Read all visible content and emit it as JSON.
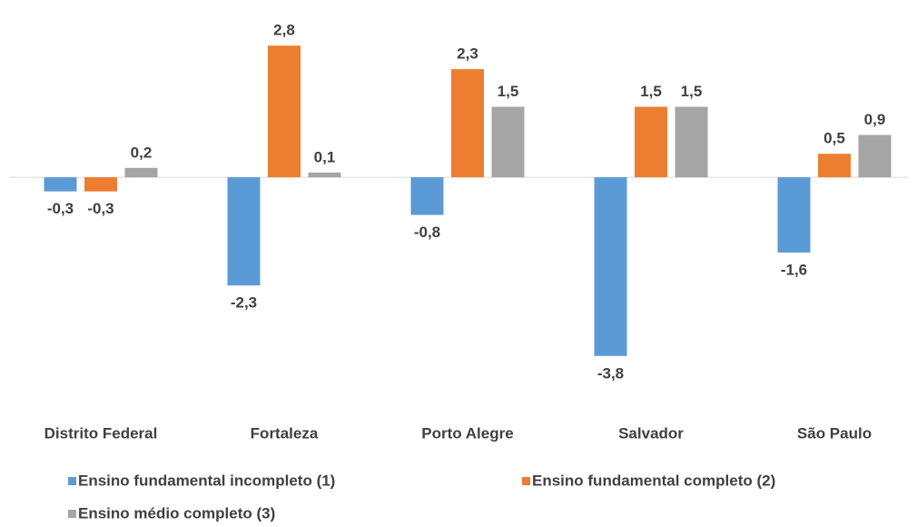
{
  "chart_data": {
    "type": "bar",
    "categories": [
      "Distrito Federal",
      "Fortaleza",
      "Porto Alegre",
      "Salvador",
      "São Paulo"
    ],
    "series": [
      {
        "name": "Ensino fundamental incompleto (1)",
        "color": "#5b9bd5",
        "values": [
          -0.3,
          -2.3,
          -0.8,
          -3.8,
          -1.6
        ],
        "value_labels": [
          "-0,3",
          "-2,3",
          "-0,8",
          "-3,8",
          "-1,6"
        ]
      },
      {
        "name": "Ensino fundamental completo (2)",
        "color": "#ed7d31",
        "values": [
          -0.3,
          2.8,
          2.3,
          1.5,
          0.5
        ],
        "value_labels": [
          "-0,3",
          "2,8",
          "2,3",
          "1,5",
          "0,5"
        ]
      },
      {
        "name": "Ensino médio completo (3)",
        "color": "#a5a5a5",
        "values": [
          0.2,
          0.1,
          1.5,
          1.5,
          0.9
        ],
        "value_labels": [
          "0,2",
          "0,1",
          "1,5",
          "1,5",
          "0,9"
        ]
      }
    ],
    "ylim": [
      -4.5,
      3.5
    ],
    "legend": "bottom"
  }
}
